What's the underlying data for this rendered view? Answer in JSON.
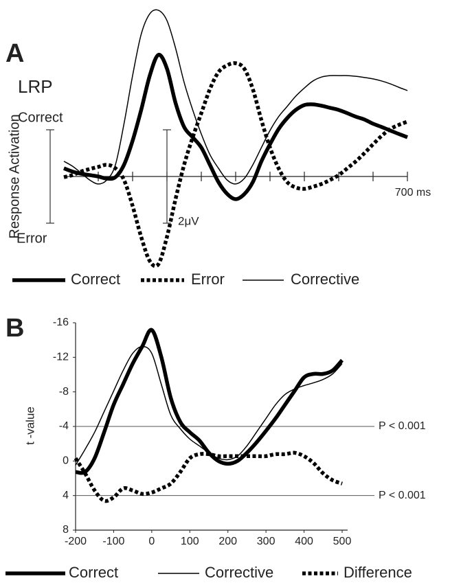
{
  "chart_data": [
    {
      "type": "line",
      "panel": "A",
      "title": "LRP",
      "ylabel": "Response Activation",
      "annotations": {
        "top": "Correct",
        "bottom": "Error"
      },
      "scale_bar": {
        "value": 2,
        "label": "2μV"
      },
      "x": [
        -300,
        -275,
        -250,
        -225,
        -200,
        -175,
        -150,
        -125,
        -100,
        -75,
        -50,
        -25,
        0,
        25,
        50,
        75,
        100,
        125,
        150,
        175,
        200,
        225,
        250,
        275,
        300,
        325,
        350,
        375,
        400,
        425,
        450,
        475,
        500,
        525,
        550,
        575,
        600,
        625,
        650,
        675,
        700
      ],
      "xlim": [
        -300,
        700
      ],
      "xticks": [
        -200,
        -100,
        0,
        100,
        200,
        300,
        400,
        500,
        600,
        {
          "value": 700,
          "label": "700 ms"
        }
      ],
      "ylim": [
        -4,
        7.5
      ],
      "series": [
        {
          "name": "Correct",
          "color": "#000000",
          "style": "thick",
          "values": [
            0.35,
            0.21,
            0.12,
            0.06,
            0,
            -0.09,
            -0.03,
            0.5,
            1.53,
            2.85,
            4.32,
            5.21,
            4.62,
            3.15,
            2.12,
            1.68,
            1.24,
            0.5,
            -0.24,
            -0.74,
            -0.97,
            -0.76,
            -0.24,
            0.65,
            1.38,
            2.03,
            2.5,
            2.85,
            3.06,
            3.09,
            3.03,
            2.94,
            2.85,
            2.71,
            2.56,
            2.44,
            2.26,
            2.12,
            1.97,
            1.82,
            1.68
          ]
        },
        {
          "name": "Error",
          "color": "#000000",
          "style": "dotted",
          "values": [
            -0.03,
            0.06,
            0.21,
            0.32,
            0.41,
            0.5,
            0.35,
            -0.15,
            -1.26,
            -2.59,
            -3.62,
            -3.76,
            -2.59,
            -0.97,
            0.5,
            1.68,
            2.71,
            3.74,
            4.47,
            4.76,
            4.85,
            4.62,
            3.74,
            2.41,
            1.24,
            0.35,
            -0.24,
            -0.47,
            -0.53,
            -0.44,
            -0.32,
            -0.15,
            0.06,
            0.35,
            0.65,
            1,
            1.38,
            1.74,
            2.03,
            2.21,
            2.35
          ]
        },
        {
          "name": "Corrective",
          "color": "#000000",
          "style": "thin",
          "values": [
            0.65,
            0.44,
            0.15,
            -0.15,
            -0.32,
            -0.15,
            0.5,
            2.26,
            4.32,
            6.09,
            6.97,
            7.12,
            6.68,
            5.5,
            4.03,
            2.85,
            1.82,
            0.94,
            0.35,
            -0.15,
            -0.32,
            -0.09,
            0.5,
            1.24,
            1.97,
            2.56,
            3,
            3.44,
            3.79,
            4.09,
            4.26,
            4.32,
            4.32,
            4.32,
            4.29,
            4.24,
            4.18,
            4.09,
            3.97,
            3.82,
            3.68
          ]
        }
      ]
    },
    {
      "type": "line",
      "panel": "B",
      "ylabel": "t -value",
      "x": [
        -200,
        -175,
        -150,
        -125,
        -100,
        -75,
        -50,
        -25,
        0,
        25,
        50,
        75,
        100,
        125,
        150,
        175,
        200,
        225,
        250,
        275,
        300,
        325,
        350,
        375,
        400,
        425,
        450,
        475,
        500
      ],
      "xlim": [
        -200,
        500
      ],
      "xticks": [
        -200,
        -100,
        0,
        100,
        200,
        300,
        400,
        500
      ],
      "ylim": [
        -16,
        8
      ],
      "y_inverted": true,
      "yticks": [
        -16,
        -12,
        -8,
        -4,
        0,
        4,
        8
      ],
      "hlines": [
        {
          "value": -4,
          "label": "P < 0.001"
        },
        {
          "value": 4,
          "label": "P < 0.001"
        }
      ],
      "series": [
        {
          "name": "Correct",
          "color": "#000000",
          "style": "thick",
          "values": [
            1.27,
            1.27,
            -0.32,
            -3.33,
            -6.51,
            -8.89,
            -11.27,
            -13.25,
            -15.16,
            -12.06,
            -7.3,
            -4.52,
            -3.33,
            -2.38,
            -0.95,
            0,
            0.32,
            0,
            -0.95,
            -2.14,
            -3.49,
            -4.92,
            -6.51,
            -8.1,
            -9.68,
            -10.08,
            -10.08,
            -10.48,
            -11.67
          ]
        },
        {
          "name": "Corrective",
          "color": "#000000",
          "style": "thin",
          "values": [
            0.48,
            -1.35,
            -3.33,
            -5.71,
            -8.1,
            -10.48,
            -12.46,
            -13.25,
            -12.46,
            -8.89,
            -5.32,
            -3.73,
            -2.54,
            -1.75,
            -0.95,
            -0.32,
            -0.16,
            -0.56,
            -1.75,
            -3.33,
            -4.92,
            -6.51,
            -7.7,
            -8.33,
            -8.73,
            -9.05,
            -9.44,
            -10.08,
            -11.27
          ]
        },
        {
          "name": "Difference",
          "color": "#000000",
          "style": "dotted",
          "values": [
            -0.32,
            1.43,
            3.41,
            4.6,
            4.21,
            3.17,
            3.41,
            3.81,
            3.65,
            3.17,
            2.62,
            1.27,
            -0.32,
            -0.79,
            -0.79,
            -0.56,
            -0.56,
            -0.56,
            -0.56,
            -0.56,
            -0.56,
            -0.79,
            -0.79,
            -0.95,
            -0.56,
            0.24,
            1.43,
            2.22,
            2.62
          ]
        }
      ]
    }
  ]
}
